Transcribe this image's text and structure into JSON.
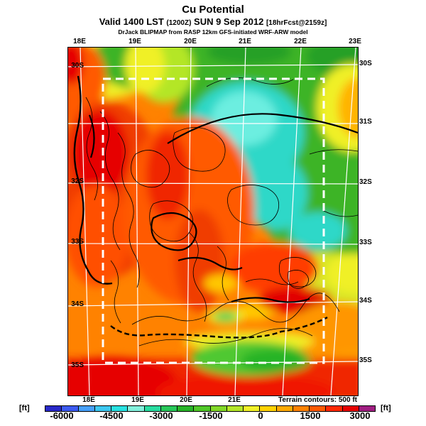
{
  "header": {
    "title": "Cu Potential",
    "valid_prefix": "Valid 1400 LST",
    "valid_zulu": "(1200Z)",
    "valid_date": "SUN 9 Sep 2012",
    "valid_fcst": "[18hrFcst@2159z]",
    "model_line": "DrJack BLIPMAP from RASP 12km GFS-initiated WRF-ARW model"
  },
  "map": {
    "top_labels": [
      "18E",
      "19E",
      "20E",
      "21E",
      "22E",
      "23E"
    ],
    "bottom_labels": [
      "18E",
      "19E",
      "20E",
      "21E"
    ],
    "left_labels": [
      "30S",
      "32S",
      "33S",
      "34S",
      "35S"
    ],
    "right_labels": [
      "30S",
      "31S",
      "32S",
      "33S",
      "34S",
      "35S"
    ],
    "annotation": "Terrain contours: 500 ft"
  },
  "colorbar": {
    "unit_left": "[ft]",
    "unit_right": "[ft]",
    "ticks": [
      "-6000",
      "-4500",
      "-3000",
      "-1500",
      "0",
      "1500",
      "3000"
    ],
    "range_ft": [
      -6500,
      3500
    ],
    "step_ft": 500,
    "segment_colors": [
      "#2828c8",
      "#3c5af0",
      "#46a0fa",
      "#3cc8f0",
      "#28e1e1",
      "#82f0dc",
      "#28dca0",
      "#28c85a",
      "#28b428",
      "#50c828",
      "#82d828",
      "#b4e628",
      "#f0f028",
      "#ffd200",
      "#ffaa00",
      "#ff8200",
      "#ff5a00",
      "#ff2800",
      "#e60000",
      "#a01e82"
    ]
  }
}
